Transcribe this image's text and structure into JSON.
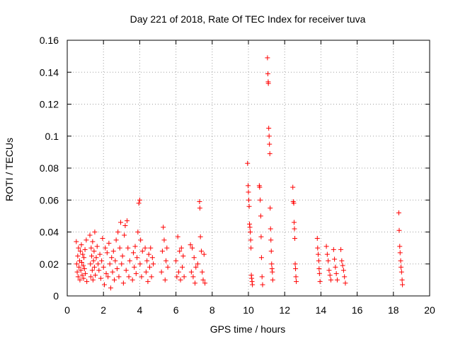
{
  "chart_data": {
    "type": "scatter",
    "title": "Day 221 of 2018, Rate Of TEC Index for receiver tuva",
    "xlabel": "GPS time / hours",
    "ylabel": "ROTI / TECUs",
    "xlim": [
      0,
      20
    ],
    "ylim": [
      0,
      0.16
    ],
    "x_ticks": [
      0,
      2,
      4,
      6,
      8,
      10,
      12,
      14,
      16,
      18,
      20
    ],
    "y_ticks": [
      0,
      0.02,
      0.04,
      0.06,
      0.08,
      0.1,
      0.12,
      0.14,
      0.16
    ],
    "x_tick_labels": [
      "0",
      "2",
      "4",
      "6",
      "8",
      "10",
      "12",
      "14",
      "16",
      "18",
      "20"
    ],
    "y_tick_labels": [
      "0",
      "0.02",
      "0.04",
      "0.06",
      "0.08",
      "0.1",
      "0.12",
      "0.14",
      "0.16"
    ],
    "grid": true,
    "marker": "plus",
    "color": "#ff0000",
    "series": [
      {
        "points": [
          [
            0.5,
            0.034
          ],
          [
            0.52,
            0.02
          ],
          [
            0.55,
            0.015
          ],
          [
            0.58,
            0.025
          ],
          [
            0.6,
            0.012
          ],
          [
            0.62,
            0.03
          ],
          [
            0.65,
            0.018
          ],
          [
            0.68,
            0.022
          ],
          [
            0.7,
            0.01
          ],
          [
            0.72,
            0.028
          ],
          [
            0.75,
            0.016
          ],
          [
            0.78,
            0.032
          ],
          [
            0.8,
            0.021
          ],
          [
            0.82,
            0.013
          ],
          [
            0.85,
            0.026
          ],
          [
            0.88,
            0.019
          ],
          [
            0.9,
            0.011
          ],
          [
            0.92,
            0.024
          ],
          [
            0.95,
            0.017
          ],
          [
            0.98,
            0.029
          ],
          [
            1.0,
            0.014
          ],
          [
            1.05,
            0.035
          ],
          [
            1.08,
            0.009
          ],
          [
            1.25,
            0.038
          ],
          [
            1.28,
            0.02
          ],
          [
            1.3,
            0.012
          ],
          [
            1.32,
            0.03
          ],
          [
            1.35,
            0.025
          ],
          [
            1.38,
            0.016
          ],
          [
            1.4,
            0.034
          ],
          [
            1.42,
            0.01
          ],
          [
            1.45,
            0.022
          ],
          [
            1.48,
            0.028
          ],
          [
            1.5,
            0.018
          ],
          [
            1.52,
            0.04
          ],
          [
            1.55,
            0.013
          ],
          [
            1.6,
            0.024
          ],
          [
            1.65,
            0.031
          ],
          [
            1.7,
            0.02
          ],
          [
            1.75,
            0.016
          ],
          [
            1.8,
            0.026
          ],
          [
            1.85,
            0.011
          ],
          [
            1.9,
            0.022
          ],
          [
            1.95,
            0.036
          ],
          [
            2.0,
            0.018
          ],
          [
            2.05,
            0.007
          ],
          [
            2.1,
            0.03
          ],
          [
            2.15,
            0.014
          ],
          [
            2.2,
            0.027
          ],
          [
            2.25,
            0.012
          ],
          [
            2.3,
            0.033
          ],
          [
            2.35,
            0.02
          ],
          [
            2.4,
            0.005
          ],
          [
            2.45,
            0.024
          ],
          [
            2.5,
            0.015
          ],
          [
            2.55,
            0.028
          ],
          [
            2.6,
            0.01
          ],
          [
            2.65,
            0.022
          ],
          [
            2.7,
            0.035
          ],
          [
            2.75,
            0.017
          ],
          [
            2.8,
            0.04
          ],
          [
            2.85,
            0.012
          ],
          [
            2.9,
            0.03
          ],
          [
            2.95,
            0.046
          ],
          [
            3.0,
            0.02
          ],
          [
            3.05,
            0.025
          ],
          [
            3.1,
            0.008
          ],
          [
            3.15,
            0.038
          ],
          [
            3.2,
            0.044
          ],
          [
            3.25,
            0.016
          ],
          [
            3.3,
            0.047
          ],
          [
            3.35,
            0.03
          ],
          [
            3.4,
            0.012
          ],
          [
            3.45,
            0.022
          ],
          [
            3.6,
            0.01
          ],
          [
            3.65,
            0.027
          ],
          [
            3.7,
            0.018
          ],
          [
            3.75,
            0.031
          ],
          [
            3.8,
            0.014
          ],
          [
            3.85,
            0.024
          ],
          [
            3.9,
            0.04
          ],
          [
            3.95,
            0.058
          ],
          [
            4.0,
            0.06
          ],
          [
            4.02,
            0.02
          ],
          [
            4.05,
            0.035
          ],
          [
            4.1,
            0.012
          ],
          [
            4.15,
            0.028
          ],
          [
            4.3,
            0.03
          ],
          [
            4.35,
            0.015
          ],
          [
            4.4,
            0.022
          ],
          [
            4.45,
            0.009
          ],
          [
            4.5,
            0.026
          ],
          [
            4.55,
            0.018
          ],
          [
            4.6,
            0.03
          ],
          [
            4.65,
            0.012
          ],
          [
            4.7,
            0.024
          ],
          [
            4.75,
            0.02
          ],
          [
            5.2,
            0.015
          ],
          [
            5.25,
            0.028
          ],
          [
            5.3,
            0.043
          ],
          [
            5.35,
            0.035
          ],
          [
            5.4,
            0.01
          ],
          [
            5.45,
            0.022
          ],
          [
            5.5,
            0.03
          ],
          [
            5.55,
            0.018
          ],
          [
            6.0,
            0.022
          ],
          [
            6.05,
            0.012
          ],
          [
            6.1,
            0.037
          ],
          [
            6.15,
            0.015
          ],
          [
            6.2,
            0.028
          ],
          [
            6.25,
            0.01
          ],
          [
            6.3,
            0.03
          ],
          [
            6.35,
            0.018
          ],
          [
            6.4,
            0.025
          ],
          [
            6.45,
            0.012
          ],
          [
            6.8,
            0.032
          ],
          [
            6.85,
            0.015
          ],
          [
            6.9,
            0.03
          ],
          [
            6.95,
            0.012
          ],
          [
            7.0,
            0.024
          ],
          [
            7.05,
            0.008
          ],
          [
            7.1,
            0.018
          ],
          [
            7.2,
            0.02
          ],
          [
            7.3,
            0.059
          ],
          [
            7.32,
            0.055
          ],
          [
            7.35,
            0.037
          ],
          [
            7.4,
            0.028
          ],
          [
            7.45,
            0.015
          ],
          [
            7.5,
            0.01
          ],
          [
            7.55,
            0.026
          ],
          [
            7.6,
            0.008
          ],
          [
            9.95,
            0.083
          ],
          [
            9.98,
            0.069
          ],
          [
            10.0,
            0.065
          ],
          [
            10.02,
            0.06
          ],
          [
            10.04,
            0.056
          ],
          [
            10.06,
            0.045
          ],
          [
            10.08,
            0.043
          ],
          [
            10.1,
            0.04
          ],
          [
            10.12,
            0.035
          ],
          [
            10.14,
            0.03
          ],
          [
            10.16,
            0.013
          ],
          [
            10.18,
            0.011
          ],
          [
            10.2,
            0.009
          ],
          [
            10.22,
            0.007
          ],
          [
            10.6,
            0.069
          ],
          [
            10.62,
            0.068
          ],
          [
            10.65,
            0.06
          ],
          [
            10.68,
            0.05
          ],
          [
            10.7,
            0.037
          ],
          [
            10.72,
            0.024
          ],
          [
            10.75,
            0.012
          ],
          [
            10.78,
            0.007
          ],
          [
            11.05,
            0.149
          ],
          [
            11.07,
            0.139
          ],
          [
            11.09,
            0.134
          ],
          [
            11.1,
            0.133
          ],
          [
            11.12,
            0.105
          ],
          [
            11.14,
            0.1
          ],
          [
            11.16,
            0.095
          ],
          [
            11.18,
            0.089
          ],
          [
            11.2,
            0.055
          ],
          [
            11.22,
            0.042
          ],
          [
            11.24,
            0.035
          ],
          [
            11.26,
            0.028
          ],
          [
            11.28,
            0.02
          ],
          [
            11.3,
            0.017
          ],
          [
            11.32,
            0.015
          ],
          [
            11.34,
            0.01
          ],
          [
            12.45,
            0.068
          ],
          [
            12.47,
            0.059
          ],
          [
            12.5,
            0.058
          ],
          [
            12.52,
            0.046
          ],
          [
            12.54,
            0.042
          ],
          [
            12.56,
            0.036
          ],
          [
            12.58,
            0.02
          ],
          [
            12.6,
            0.017
          ],
          [
            12.62,
            0.012
          ],
          [
            12.64,
            0.009
          ],
          [
            13.8,
            0.036
          ],
          [
            13.82,
            0.03
          ],
          [
            13.85,
            0.026
          ],
          [
            13.88,
            0.022
          ],
          [
            13.9,
            0.017
          ],
          [
            13.92,
            0.014
          ],
          [
            13.95,
            0.009
          ],
          [
            14.3,
            0.031
          ],
          [
            14.35,
            0.026
          ],
          [
            14.4,
            0.022
          ],
          [
            14.45,
            0.016
          ],
          [
            14.5,
            0.013
          ],
          [
            14.55,
            0.01
          ],
          [
            14.7,
            0.029
          ],
          [
            14.75,
            0.023
          ],
          [
            14.8,
            0.018
          ],
          [
            14.85,
            0.014
          ],
          [
            14.9,
            0.01
          ],
          [
            15.1,
            0.029
          ],
          [
            15.15,
            0.022
          ],
          [
            15.2,
            0.019
          ],
          [
            15.25,
            0.016
          ],
          [
            15.3,
            0.012
          ],
          [
            15.35,
            0.008
          ],
          [
            18.3,
            0.052
          ],
          [
            18.32,
            0.041
          ],
          [
            18.35,
            0.031
          ],
          [
            18.37,
            0.027
          ],
          [
            18.4,
            0.022
          ],
          [
            18.42,
            0.018
          ],
          [
            18.45,
            0.015
          ],
          [
            18.48,
            0.01
          ],
          [
            18.5,
            0.007
          ]
        ]
      }
    ]
  }
}
